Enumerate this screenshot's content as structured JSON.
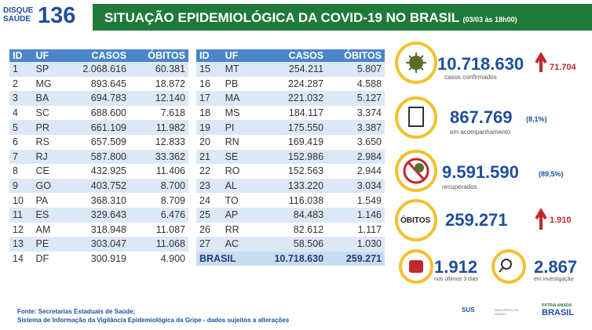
{
  "header": {
    "logo_top": "DISQUE",
    "logo_bottom": "SAÚDE",
    "logo_number": "136",
    "title": "SITUAÇÃO EPIDEMIOLÓGICA DA COVID-19 NO BRASIL",
    "date": "(03/03 às 18h00)"
  },
  "table_left": {
    "columns": [
      "ID",
      "UF",
      "CASOS",
      "ÓBITOS"
    ],
    "rows": [
      [
        "1",
        "SP",
        "2.068.616",
        "60.381"
      ],
      [
        "2",
        "MG",
        "893.645",
        "18.872"
      ],
      [
        "3",
        "BA",
        "694.783",
        "12.140"
      ],
      [
        "4",
        "SC",
        "688.600",
        "7.618"
      ],
      [
        "5",
        "PR",
        "661.109",
        "11.982"
      ],
      [
        "6",
        "RS",
        "657.509",
        "12.833"
      ],
      [
        "7",
        "RJ",
        "587.800",
        "33.362"
      ],
      [
        "8",
        "CE",
        "432.925",
        "11.406"
      ],
      [
        "9",
        "GO",
        "403.752",
        "8.700"
      ],
      [
        "10",
        "PA",
        "368.310",
        "8.709"
      ],
      [
        "11",
        "ES",
        "329.643",
        "6.476"
      ],
      [
        "12",
        "AM",
        "318.948",
        "11.087"
      ],
      [
        "13",
        "PE",
        "303.047",
        "11.068"
      ],
      [
        "14",
        "DF",
        "300.919",
        "4.900"
      ]
    ]
  },
  "table_right": {
    "columns": [
      "ID",
      "UF",
      "CASOS",
      "ÓBITOS"
    ],
    "rows": [
      [
        "15",
        "MT",
        "254.211",
        "5.807"
      ],
      [
        "16",
        "PB",
        "224.287",
        "4.588"
      ],
      [
        "17",
        "MA",
        "221.032",
        "5.127"
      ],
      [
        "18",
        "MS",
        "184.117",
        "3.374"
      ],
      [
        "19",
        "PI",
        "175.550",
        "3.387"
      ],
      [
        "20",
        "RN",
        "169.419",
        "3.650"
      ],
      [
        "21",
        "SE",
        "152.986",
        "2.984"
      ],
      [
        "22",
        "RO",
        "152.563",
        "2.944"
      ],
      [
        "23",
        "AL",
        "133.220",
        "3.034"
      ],
      [
        "24",
        "TO",
        "116.038",
        "1.549"
      ],
      [
        "25",
        "AP",
        "84.483",
        "1.146"
      ],
      [
        "26",
        "RR",
        "82.612",
        "1.117"
      ],
      [
        "27",
        "AC",
        "58.506",
        "1.030"
      ]
    ],
    "total": [
      "BRASIL",
      "10.718.630",
      "259.271"
    ]
  },
  "stats": {
    "confirmed": {
      "value": "10.718.630",
      "label": "casos confirmados",
      "new": "71.704"
    },
    "monitoring": {
      "value": "867.769",
      "percent": "(8,1%)",
      "label": "em acompanhamento"
    },
    "recovered": {
      "value": "9.591.590",
      "percent": "(89,5%)",
      "label": "recuperados"
    },
    "deaths": {
      "icon": "ÓBITOS",
      "value": "259.271",
      "new": "1.910"
    },
    "last_days": {
      "value": "1.912",
      "label": "nos últimos 3 dias"
    },
    "investigation": {
      "value": "2.867",
      "label": "em investigação"
    }
  },
  "footer": {
    "source": "Fonte: Secretarias Estaduais de Saúde;",
    "system": "Sistema de Informação da Vigilância Epidemiológica da Gripe - dados sujeitos a alterações",
    "sus": "SUS",
    "ministry": "MINISTÉRIO DA SAÚDE",
    "gov_top": "PÁTRIA AMADA",
    "gov_bottom": "BRASIL"
  }
}
